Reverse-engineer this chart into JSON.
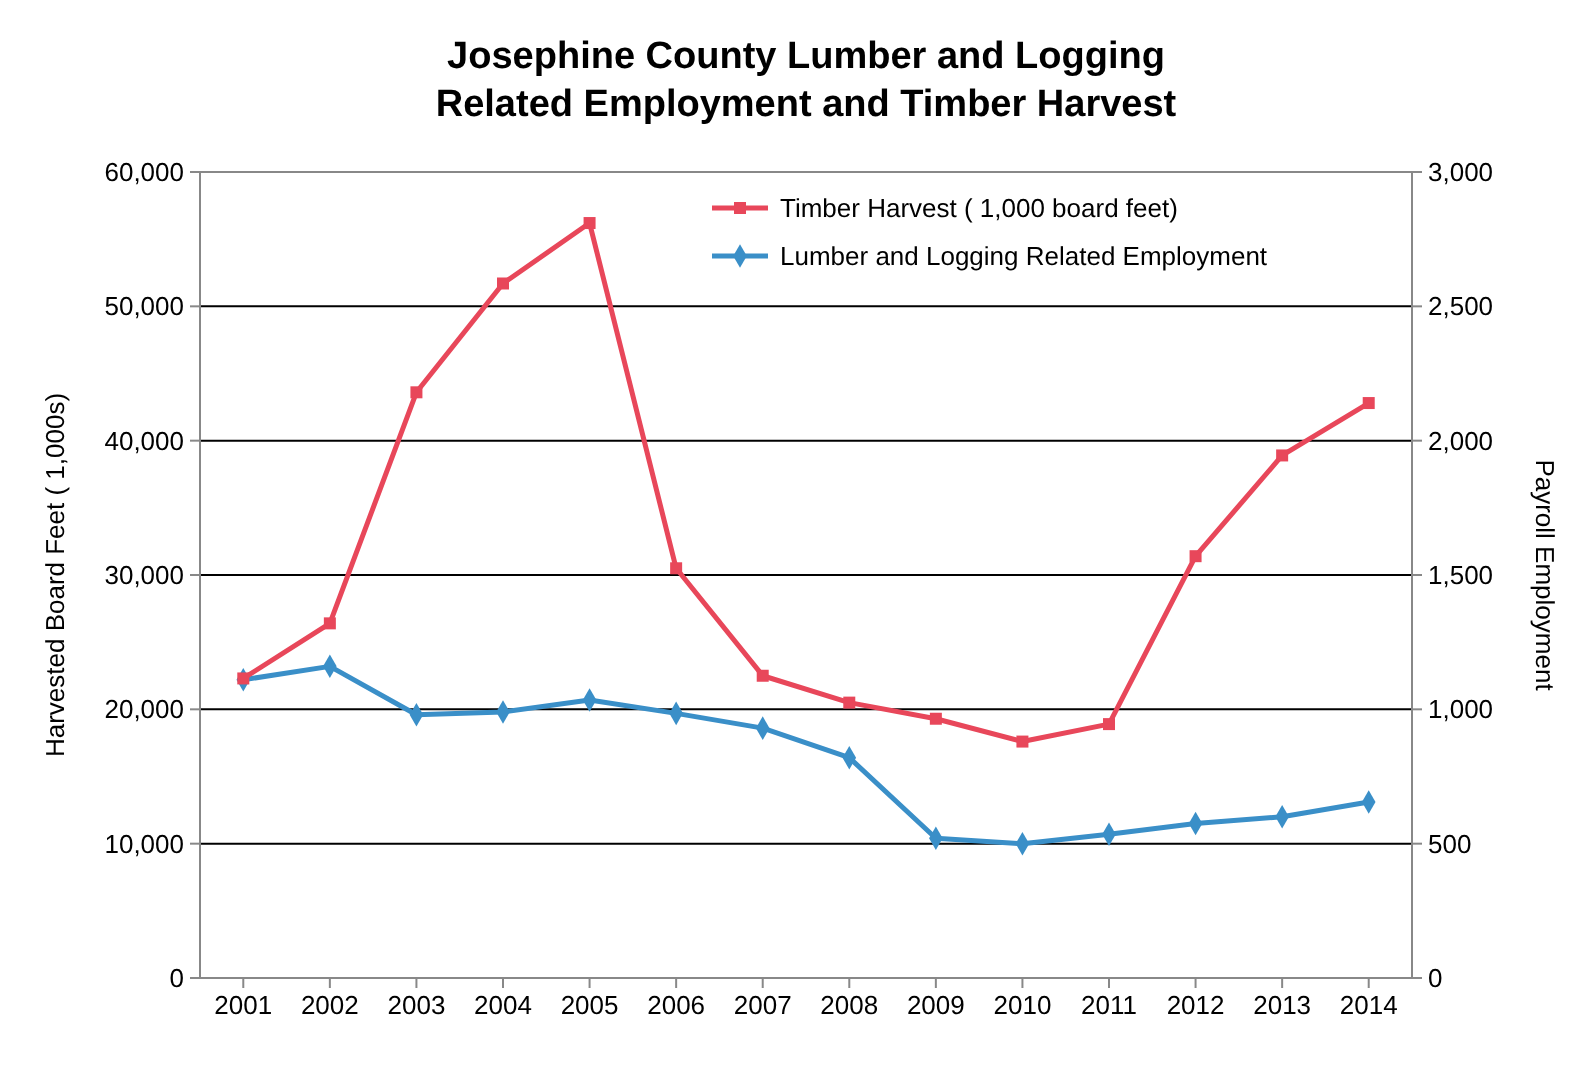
{
  "chart_data": {
    "type": "line",
    "title": "Josephine County Lumber and Logging\nRelated Employment and Timber Harvest",
    "ylabel": "Harvested Board Feet ( 1,000s)",
    "y2label": "Payroll Employment",
    "categories": [
      "2001",
      "2002",
      "2003",
      "2004",
      "2005",
      "2006",
      "2007",
      "2008",
      "2009",
      "2010",
      "2011",
      "2012",
      "2013",
      "2014"
    ],
    "series": [
      {
        "name": "Timber Harvest ( 1,000 board feet)",
        "color": "#e8475a",
        "marker": "square",
        "values": [
          22300,
          26400,
          43600,
          51700,
          56200,
          30500,
          22500,
          20500,
          19300,
          17600,
          18900,
          31400,
          38900,
          42800
        ]
      },
      {
        "name": "Lumber and Logging Related Employment",
        "color": "#3a8fc8",
        "marker": "diamond",
        "axis": "y2",
        "values": [
          1110,
          1160,
          980,
          990,
          1035,
          985,
          930,
          820,
          520,
          500,
          535,
          575,
          600,
          655
        ]
      }
    ],
    "ylim": [
      0,
      60000
    ],
    "yticks": [
      {
        "value": 0,
        "label": "0"
      },
      {
        "value": 10000,
        "label": "10,000"
      },
      {
        "value": 20000,
        "label": "20,000"
      },
      {
        "value": 30000,
        "label": "30,000"
      },
      {
        "value": 40000,
        "label": "40,000"
      },
      {
        "value": 50000,
        "label": "50,000"
      },
      {
        "value": 60000,
        "label": "60,000"
      }
    ],
    "y2lim": [
      0,
      3000
    ],
    "y2ticks": [
      {
        "value": 0,
        "label": "0"
      },
      {
        "value": 500,
        "label": "500"
      },
      {
        "value": 1000,
        "label": "1,000"
      },
      {
        "value": 1500,
        "label": "1,500"
      },
      {
        "value": 2000,
        "label": "2,000"
      },
      {
        "value": 2500,
        "label": "2,500"
      },
      {
        "value": 3000,
        "label": "3,000"
      }
    ],
    "grid": "y",
    "legend": "top right",
    "line_style": "solid"
  }
}
